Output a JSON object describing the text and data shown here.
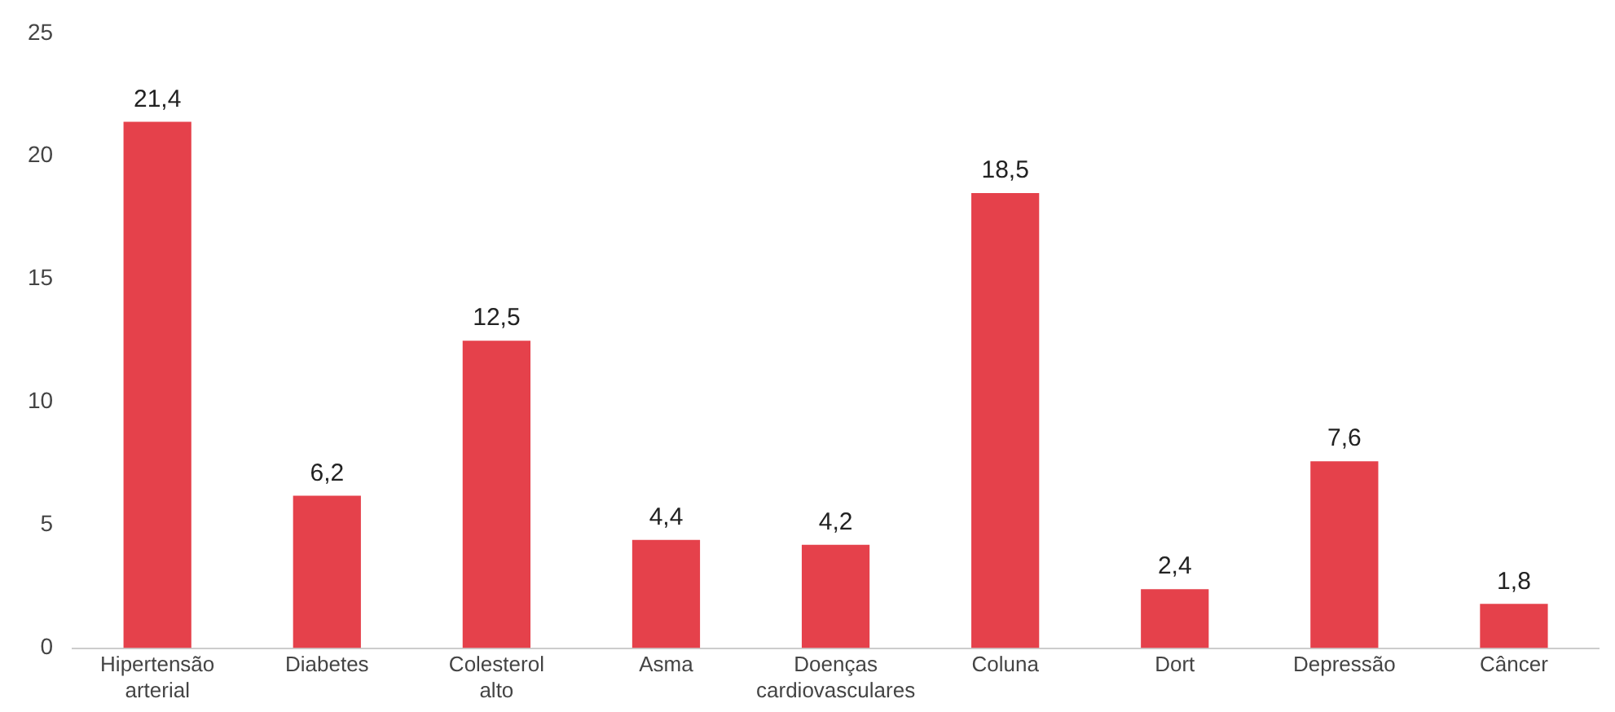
{
  "chart_data": {
    "type": "bar",
    "categories": [
      "Hipertensão arterial",
      "Diabetes",
      "Colesterol alto",
      "Asma",
      "Doenças cardiovasculares",
      "Coluna",
      "Dort",
      "Depressão",
      "Câncer"
    ],
    "values": [
      21.4,
      6.2,
      12.5,
      4.4,
      4.2,
      18.5,
      2.4,
      7.6,
      1.8
    ],
    "value_labels": [
      "21,4",
      "6,2",
      "12,5",
      "4,4",
      "4,2",
      "18,5",
      "2,4",
      "7,6",
      "1,8"
    ],
    "color": "#e5414b",
    "ylim": [
      0,
      25
    ],
    "yticks": [
      0,
      5,
      10,
      15,
      20,
      25
    ],
    "grid": false,
    "legend": false
  }
}
